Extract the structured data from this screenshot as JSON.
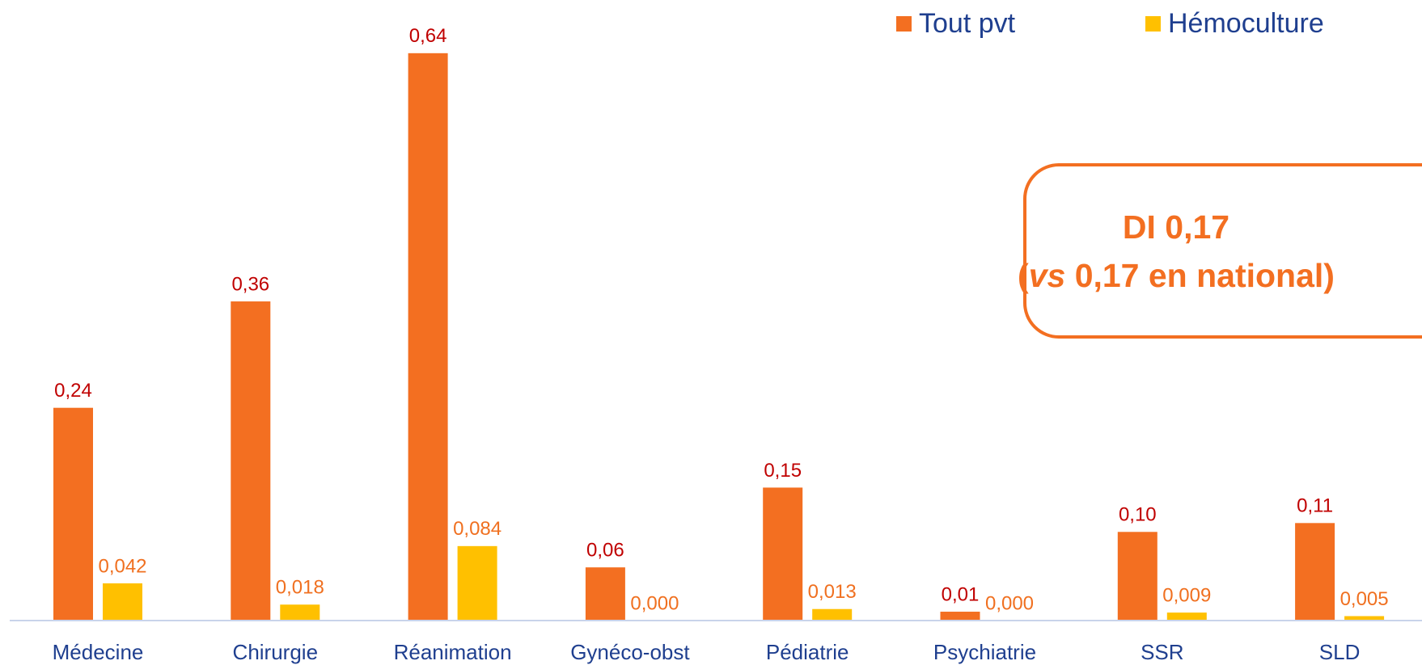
{
  "chart_data": {
    "type": "bar",
    "categories": [
      "Médecine",
      "Chirurgie",
      "Réanimation",
      "Gynéco-obst",
      "Pédiatrie",
      "Psychiatrie",
      "SSR",
      "SLD"
    ],
    "series": [
      {
        "name": "Tout pvt",
        "color": "#f36f21",
        "label_color": "#c00000",
        "values": [
          0.24,
          0.36,
          0.64,
          0.06,
          0.15,
          0.01,
          0.1,
          0.11
        ],
        "value_labels": [
          "0,24",
          "0,36",
          "0,64",
          "0,06",
          "0,15",
          "0,01",
          "0,10",
          "0,11"
        ]
      },
      {
        "name": "Hémoculture",
        "color": "#ffc000",
        "label_color": "#f07020",
        "values": [
          0.042,
          0.018,
          0.084,
          0.0,
          0.013,
          0.0,
          0.009,
          0.005
        ],
        "value_labels": [
          "0,042",
          "0,018",
          "0,084",
          "0,000",
          "0,013",
          "0,000",
          "0,009",
          "0,005"
        ]
      }
    ],
    "ylim": [
      0,
      0.7
    ],
    "legend": "top-right",
    "annotation": {
      "line1": "DI 0,17",
      "line2": [
        "(",
        "vs",
        " 0,17 en national)"
      ],
      "color": "#f36f21"
    }
  }
}
